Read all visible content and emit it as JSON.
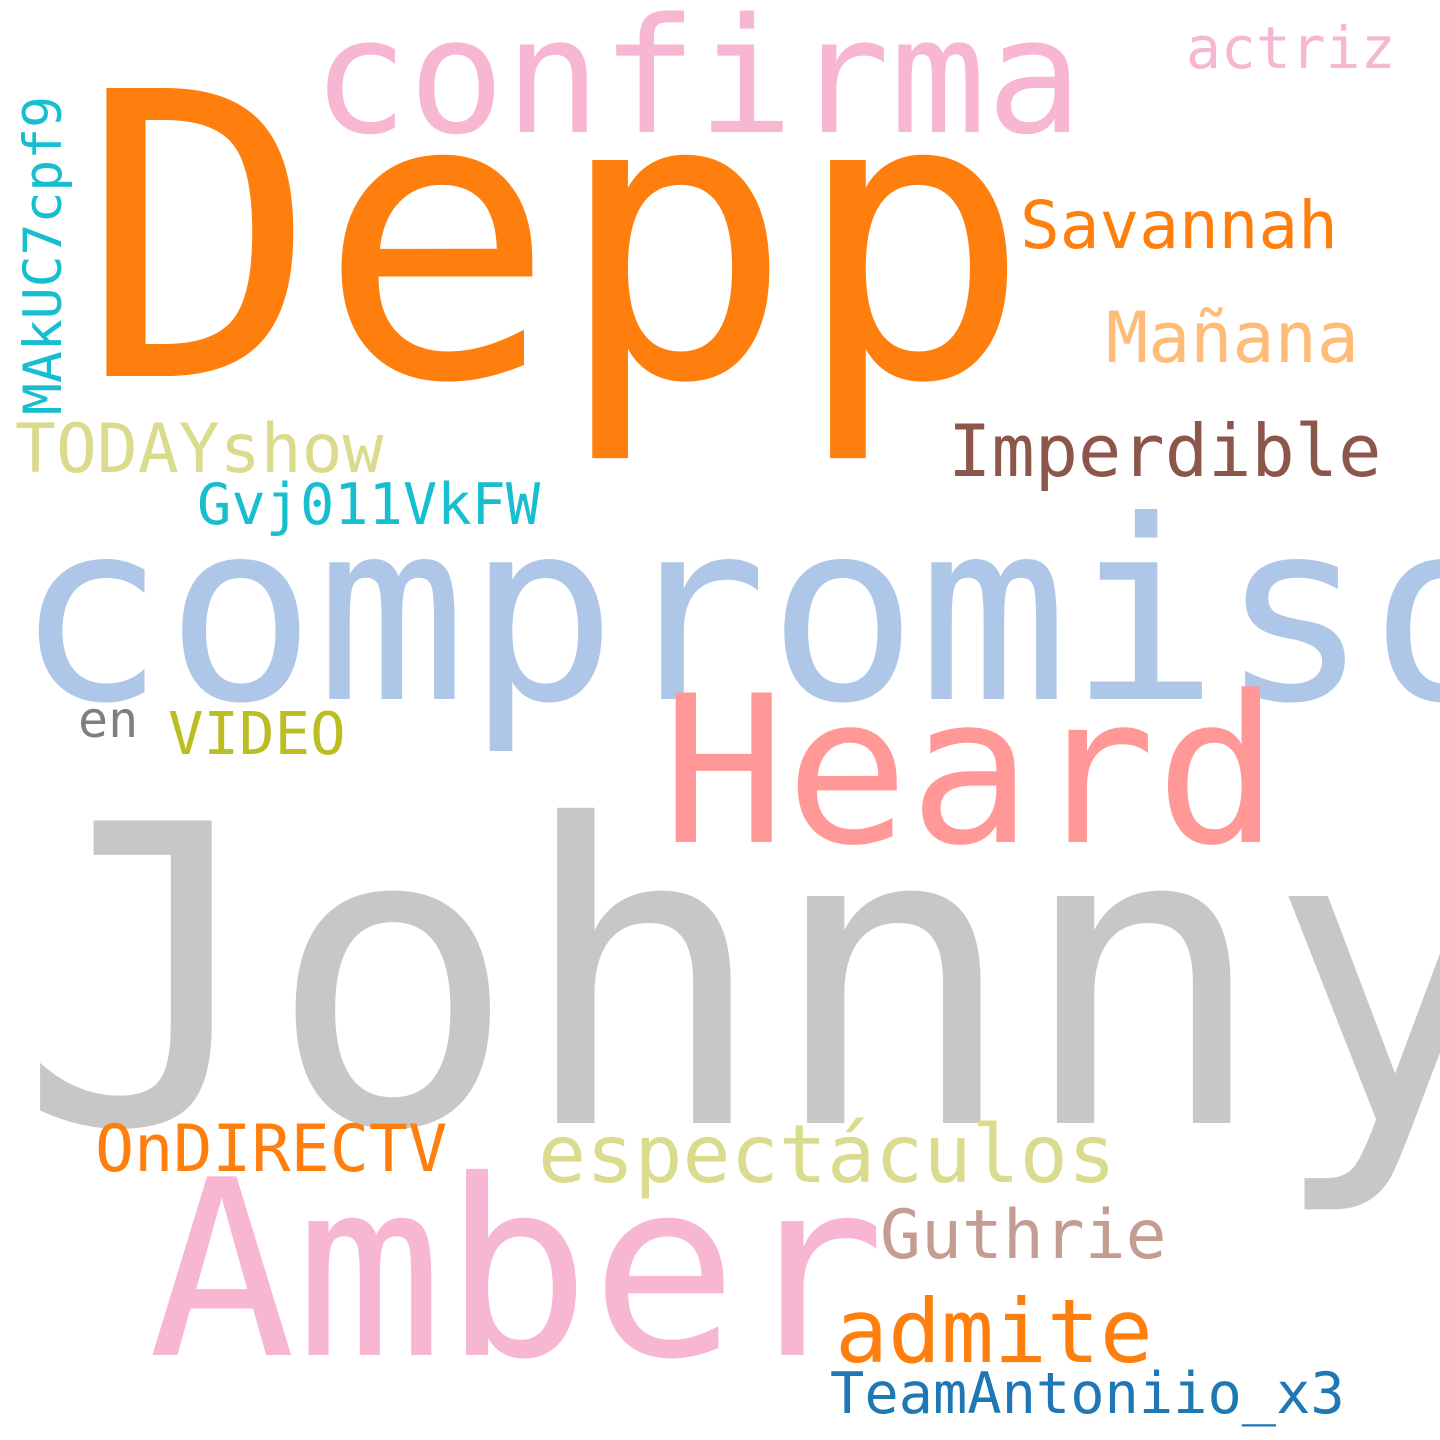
{
  "words": {
    "johnny": {
      "text": "Johnny",
      "color": "#c7c7c7"
    },
    "depp": {
      "text": "Depp",
      "color": "#ff7f0e"
    },
    "compromiso": {
      "text": "compromiso",
      "color": "#aec7e8"
    },
    "amber": {
      "text": "Amber",
      "color": "#f7b6d2"
    },
    "heard": {
      "text": "Heard",
      "color": "#ff9896"
    },
    "confirma": {
      "text": "confirma",
      "color": "#f7b6d2"
    },
    "espectaculos": {
      "text": "espectáculos",
      "color": "#dbdb8d"
    },
    "admite": {
      "text": "admite",
      "color": "#ff7f0e"
    },
    "todayshow": {
      "text": "TODAYshow",
      "color": "#dbdb8d"
    },
    "savannah": {
      "text": "Savannah",
      "color": "#ff7f0e"
    },
    "imperdible": {
      "text": "Imperdible",
      "color": "#8c564b"
    },
    "manana": {
      "text": "Mañana",
      "color": "#ffbb78"
    },
    "ondirectv": {
      "text": "OnDIRECTV",
      "color": "#ff7f0e"
    },
    "guthrie": {
      "text": "Guthrie",
      "color": "#c49c94"
    },
    "teamantoniio": {
      "text": "TeamAntoniio_x3",
      "color": "#1f77b4"
    },
    "gvj": {
      "text": "Gvj011VkFW",
      "color": "#17becf"
    },
    "video": {
      "text": "VIDEO",
      "color": "#bcbd22"
    },
    "actriz": {
      "text": "actriz",
      "color": "#f7b6d2"
    },
    "en": {
      "text": "en",
      "color": "#7f7f7f"
    },
    "makuc": {
      "text": "MAkUC7cpf9",
      "color": "#17becf"
    }
  }
}
